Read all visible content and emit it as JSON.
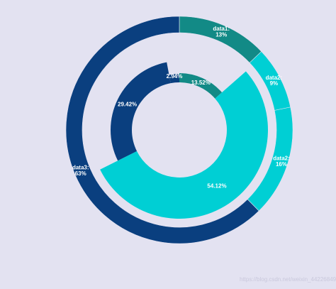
{
  "chart_data": [
    {
      "type": "pie",
      "variant": "outer-ring",
      "slices": [
        {
          "label": "data1",
          "value": 13,
          "text": "data1:\n13%",
          "color": "#128a86"
        },
        {
          "label": "data2",
          "value": 9,
          "text": "data2:\n9%",
          "color": "#00cfd4"
        },
        {
          "label": "data2",
          "value": 16,
          "text": "data2:\n16%",
          "color": "#00cfd4"
        },
        {
          "label": "data3",
          "value": 63,
          "text": "data3:\n63%",
          "color": "#0a3f7f"
        }
      ]
    },
    {
      "type": "pie",
      "variant": "inner-rose",
      "slices": [
        {
          "value": 13.52,
          "text": "13.52%",
          "color": "#128a86",
          "radius_rank": 3
        },
        {
          "value": 54.12,
          "text": "54.12%",
          "color": "#00cfd4",
          "radius_rank": 4
        },
        {
          "value": 29.42,
          "text": "29.42%",
          "color": "#0a3f7f",
          "radius_rank": 2
        },
        {
          "value": 2.94,
          "text": "2.94%",
          "color": "#0a3f7f",
          "radius_rank": 1
        }
      ]
    }
  ],
  "watermark": "https://blog.csdn.net/weixin_44226849"
}
